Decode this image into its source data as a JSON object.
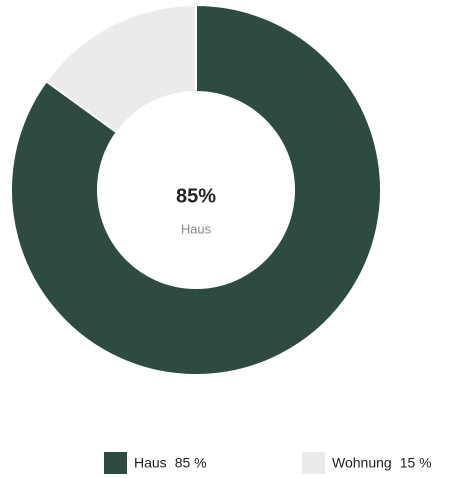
{
  "chart_data": {
    "type": "pie",
    "categories": [
      "Haus",
      "Wohnung"
    ],
    "values": [
      85,
      15
    ],
    "value_labels": [
      "85 %",
      "15 %"
    ],
    "colors": [
      "#2d4b3e",
      "#ecebe9"
    ],
    "center_label": "85%",
    "legend": "bottom"
  }
}
